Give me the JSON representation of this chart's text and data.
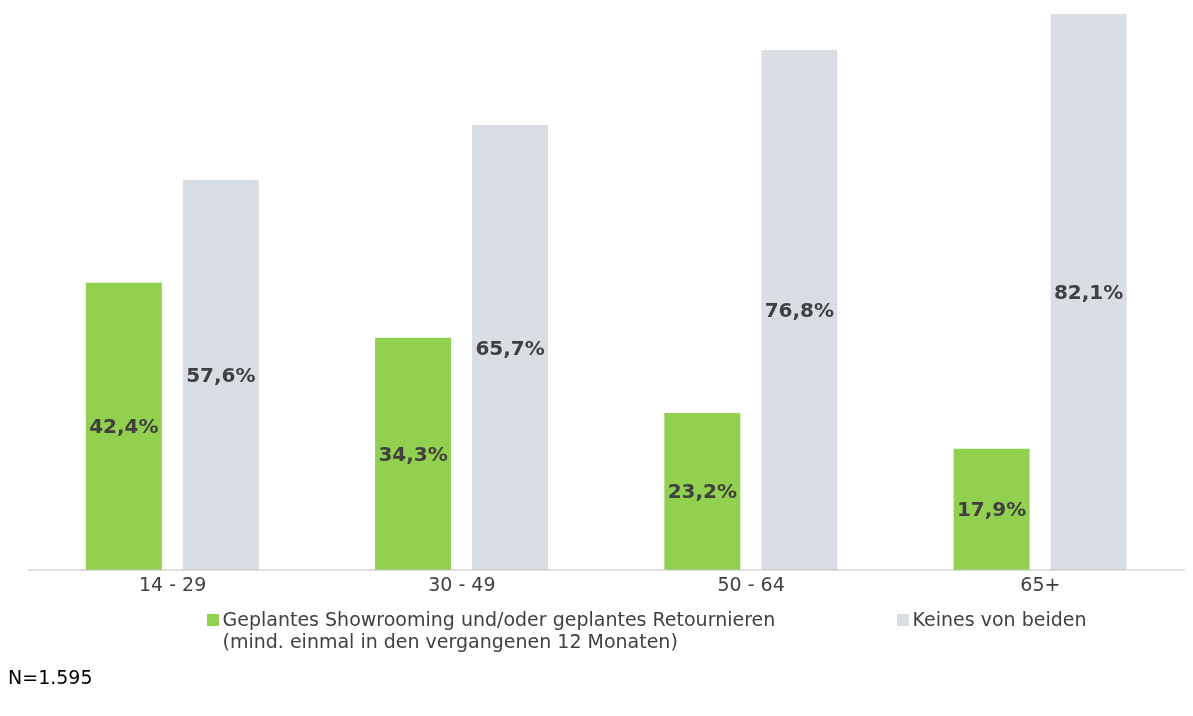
{
  "chart_data": {
    "type": "bar",
    "categories": [
      "14 - 29",
      "30 - 49",
      "50 - 64",
      "65+"
    ],
    "series": [
      {
        "name": "Geplantes Showrooming und/oder geplantes Retournieren (mind. einmal in den vergangenen 12 Monaten)",
        "color": "#92d050",
        "values": [
          42.4,
          34.3,
          23.2,
          17.9
        ],
        "value_labels": [
          "42,4%",
          "34,3%",
          "23,2%",
          "17,9%"
        ]
      },
      {
        "name": "Keines von beiden",
        "color": "#d9dee5",
        "values": [
          57.6,
          65.7,
          76.8,
          82.1
        ],
        "value_labels": [
          "57,6%",
          "65,7%",
          "76,8%",
          "82,1%"
        ]
      }
    ],
    "legend": "bottom",
    "annotations": [
      "N=1.595"
    ]
  }
}
